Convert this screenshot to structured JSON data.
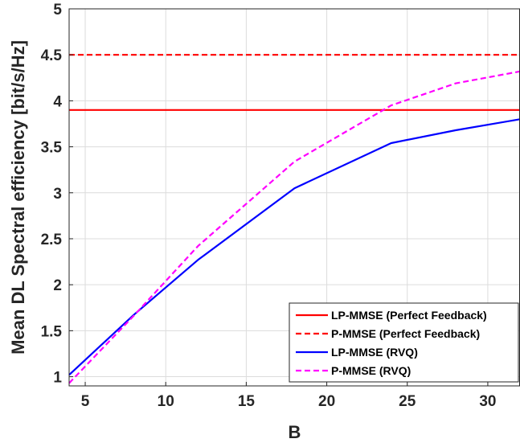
{
  "chart_data": {
    "type": "line",
    "title": "",
    "xlabel": "B",
    "ylabel": "Mean DL Spectral efficiency [bit/s/Hz]",
    "xlim": [
      4,
      32
    ],
    "ylim": [
      0.9,
      5
    ],
    "xticks": [
      5,
      10,
      15,
      20,
      25,
      30
    ],
    "yticks": [
      1,
      1.5,
      2,
      2.5,
      3,
      3.5,
      4,
      4.5,
      5
    ],
    "xtick_labels": [
      "5",
      "10",
      "15",
      "20",
      "25",
      "30"
    ],
    "ytick_labels": [
      "1",
      "1.5",
      "2",
      "2.5",
      "3",
      "3.5",
      "4",
      "4.5",
      "5"
    ],
    "grid": true,
    "legend_position": "bottom-right",
    "series": [
      {
        "name": "LP-MMSE (Perfect Feedback)",
        "color": "#ff0000",
        "dash": "solid",
        "x": [
          4,
          32
        ],
        "y": [
          3.9,
          3.9
        ]
      },
      {
        "name": "P-MMSE (Perfect Feedback)",
        "color": "#ff0000",
        "dash": "dashed",
        "x": [
          4,
          32
        ],
        "y": [
          4.5,
          4.5
        ]
      },
      {
        "name": "LP-MMSE (RVQ)",
        "color": "#0000ff",
        "dash": "solid",
        "x": [
          4,
          8,
          12,
          18,
          24,
          28,
          32
        ],
        "y": [
          1.02,
          1.67,
          2.27,
          3.05,
          3.54,
          3.68,
          3.8
        ]
      },
      {
        "name": "P-MMSE (RVQ)",
        "color": "#ff00ff",
        "dash": "dashed",
        "x": [
          4,
          8,
          12,
          18,
          24,
          28,
          32
        ],
        "y": [
          0.93,
          1.66,
          2.42,
          3.34,
          3.95,
          4.19,
          4.32
        ]
      }
    ]
  }
}
